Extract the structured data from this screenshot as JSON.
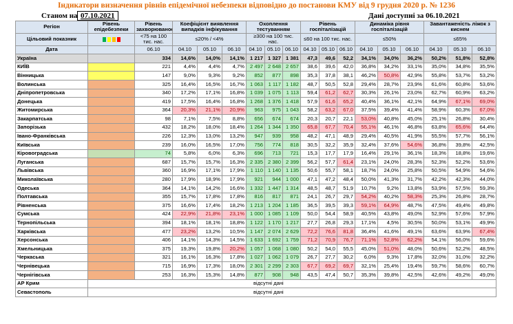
{
  "title": "Індикатори визначення рівнів епідемічної небезпеки відповідно до постанови КМУ від 9 грудня 2020 р. № 1236",
  "as_of_label": "Станом на",
  "as_of_date": "07.10.2021",
  "data_note": "Дані доступні за 06.10.2021",
  "table": {
    "headers": [
      "Регіон",
      "Рівень епідебезпеки",
      "Рівень захворюваності",
      "Коефіцієнт виявлення випадків інфікування",
      "Охоплення тестуванням",
      "Рівень госпіталізацій",
      "Динаміка рівня госпіталізацій",
      "Завантаженість ліжок з киснем"
    ],
    "target_label": "Цільовий показник",
    "targets": [
      "<75 на 100 тис. нас.",
      "≤20% / <4%",
      "≥300 на 100 тис. нас.",
      "≤60 на 100 тис. нас.",
      "≤50%",
      "≤65%"
    ],
    "date_label": "Дата",
    "dates": [
      "06.10",
      "04.10",
      "05.10",
      "06.10",
      "04.10",
      "05.10",
      "06.10",
      "04.10",
      "05.10",
      "06.10",
      "04.10",
      "05.10",
      "06.10",
      "04.10",
      "05.10",
      "06.10"
    ],
    "rows": [
      {
        "region": "Україна",
        "level": null,
        "cells": [
          "334",
          "14,6%",
          "14,0%",
          "14,1%",
          "1 217",
          "1 327",
          "1 381",
          "47,3",
          "49,6",
          "52,2",
          "34,1%",
          "34,0%",
          "36,2%",
          "50,2%",
          "51,8%",
          "52,8%"
        ],
        "red": [],
        "green": []
      },
      {
        "region": "КИЇВ",
        "level": "#ffff66",
        "cells": [
          "221",
          "4,4%",
          "4,4%",
          "4,7%",
          "2 497",
          "2 648",
          "2 657",
          "38,6",
          "39,6",
          "42,0",
          "36,8%",
          "34,2%",
          "33,1%",
          "35,0%",
          "34,8%",
          "35,5%"
        ],
        "red": [],
        "green": [
          4,
          5,
          6
        ]
      },
      {
        "region": "Вінницька",
        "level": "#ffff66",
        "cells": [
          "147",
          "9,0%",
          "9,3%",
          "9,2%",
          "852",
          "877",
          "898",
          "35,3",
          "37,8",
          "38,1",
          "46,2%",
          "50,8%",
          "42,9%",
          "55,8%",
          "53,7%",
          "53,2%"
        ],
        "red": [
          11
        ],
        "green": [
          4,
          5,
          6
        ]
      },
      {
        "region": "Волинська",
        "level": "#f4b183",
        "cells": [
          "325",
          "16,4%",
          "16,5%",
          "16,7%",
          "1 063",
          "1 117",
          "1 182",
          "48,7",
          "50,5",
          "52,8",
          "29,4%",
          "28,7%",
          "23,9%",
          "61,6%",
          "60,8%",
          "53,6%"
        ],
        "red": [],
        "green": [
          4,
          5,
          6
        ]
      },
      {
        "region": "Дніпропетровська",
        "level": "#f4b183",
        "cells": [
          "340",
          "17,2%",
          "17,1%",
          "16,8%",
          "1 039",
          "1 075",
          "1 113",
          "59,4",
          "61,2",
          "62,7",
          "30,3%",
          "26,1%",
          "23,0%",
          "62,7%",
          "60,9%",
          "63,2%"
        ],
        "red": [
          8,
          9
        ],
        "green": [
          4,
          5,
          6
        ]
      },
      {
        "region": "Донецька",
        "level": "#f4b183",
        "cells": [
          "419",
          "17,5%",
          "16,4%",
          "16,8%",
          "1 268",
          "1 376",
          "1 418",
          "57,9",
          "61,6",
          "65,2",
          "40,4%",
          "36,1%",
          "42,1%",
          "64,9%",
          "67,1%",
          "69,0%"
        ],
        "red": [
          8,
          9,
          14,
          15
        ],
        "green": [
          4,
          5,
          6
        ]
      },
      {
        "region": "Житомирська",
        "level": "#f4b183",
        "cells": [
          "364",
          "20,3%",
          "21,1%",
          "20,9%",
          "963",
          "975",
          "1 043",
          "58,2",
          "63,2",
          "67,0",
          "37,5%",
          "39,4%",
          "41,4%",
          "58,9%",
          "60,3%",
          "67,0%"
        ],
        "red": [
          1,
          2,
          3,
          8,
          9,
          15
        ],
        "green": [
          4,
          5,
          6
        ]
      },
      {
        "region": "Закарпатська",
        "level": "#f4b183",
        "cells": [
          "98",
          "7,1%",
          "7,5%",
          "8,8%",
          "656",
          "674",
          "674",
          "20,3",
          "20,7",
          "22,1",
          "53,0%",
          "40,8%",
          "45,0%",
          "25,1%",
          "26,8%",
          "30,4%"
        ],
        "red": [
          10
        ],
        "green": [
          4,
          5,
          6
        ]
      },
      {
        "region": "Запорізька",
        "level": "#f4b183",
        "cells": [
          "432",
          "18,2%",
          "18,0%",
          "18,4%",
          "1 264",
          "1 344",
          "1 350",
          "65,8",
          "67,7",
          "70,4",
          "55,1%",
          "46,1%",
          "46,8%",
          "63,8%",
          "65,6%",
          "64,4%"
        ],
        "red": [
          7,
          8,
          9,
          10,
          14
        ],
        "green": [
          4,
          5,
          6
        ]
      },
      {
        "region": "Івано-Франківська",
        "level": "#f4b183",
        "cells": [
          "226",
          "12,3%",
          "13,0%",
          "13,2%",
          "947",
          "939",
          "958",
          "48,2",
          "47,1",
          "48,9",
          "29,4%",
          "40,5%",
          "41,9%",
          "55,5%",
          "57,7%",
          "56,1%"
        ],
        "red": [],
        "green": [
          4,
          5,
          6
        ]
      },
      {
        "region": "Київська",
        "level": "#f4b183",
        "cells": [
          "239",
          "16,0%",
          "16,5%",
          "17,0%",
          "756",
          "774",
          "818",
          "30,5",
          "32,2",
          "35,9",
          "32,4%",
          "37,6%",
          "54,6%",
          "36,8%",
          "39,8%",
          "42,5%"
        ],
        "red": [
          12
        ],
        "green": [
          4,
          5,
          6
        ]
      },
      {
        "region": "Кіровоградська",
        "level": "#c6e0b4",
        "cells": [
          "74",
          "5,8%",
          "6,0%",
          "6,3%",
          "696",
          "713",
          "721",
          "15,3",
          "17,7",
          "17,9",
          "16,4%",
          "29,1%",
          "36,1%",
          "18,3%",
          "18,8%",
          "19,6%"
        ],
        "red": [],
        "green": [
          0,
          4,
          5,
          6
        ]
      },
      {
        "region": "Луганська",
        "level": "#f4b183",
        "cells": [
          "687",
          "15,7%",
          "15,7%",
          "16,3%",
          "2 335",
          "2 380",
          "2 399",
          "56,2",
          "57,7",
          "61,4",
          "23,1%",
          "24,0%",
          "28,3%",
          "52,3%",
          "52,2%",
          "53,6%"
        ],
        "red": [
          9
        ],
        "green": [
          4,
          5,
          6
        ]
      },
      {
        "region": "Львівська",
        "level": "#f4b183",
        "cells": [
          "360",
          "16,9%",
          "17,1%",
          "17,9%",
          "1 110",
          "1 140",
          "1 135",
          "50,6",
          "55,7",
          "58,1",
          "18,7%",
          "24,0%",
          "25,8%",
          "50,5%",
          "54,9%",
          "54,6%"
        ],
        "red": [],
        "green": [
          4,
          5,
          6
        ]
      },
      {
        "region": "Миколаївська",
        "level": "#f4b183",
        "cells": [
          "280",
          "17,9%",
          "18,9%",
          "17,9%",
          "921",
          "944",
          "1 000",
          "47,1",
          "47,2",
          "48,4",
          "50,0%",
          "41,3%",
          "31,7%",
          "42,2%",
          "42,3%",
          "44,0%"
        ],
        "red": [],
        "green": [
          4,
          5,
          6
        ]
      },
      {
        "region": "Одеська",
        "level": "#f4b183",
        "cells": [
          "364",
          "14,1%",
          "14,2%",
          "16,6%",
          "1 332",
          "1 447",
          "1 314",
          "48,5",
          "48,7",
          "51,9",
          "10,7%",
          "9,2%",
          "13,8%",
          "53,9%",
          "57,5%",
          "59,3%"
        ],
        "red": [],
        "green": [
          4,
          5,
          6
        ]
      },
      {
        "region": "Полтавська",
        "level": "#f4b183",
        "cells": [
          "355",
          "15,7%",
          "17,8%",
          "17,8%",
          "816",
          "817",
          "871",
          "24,1",
          "26,7",
          "29,7",
          "54,2%",
          "40,2%",
          "58,3%",
          "25,3%",
          "26,8%",
          "28,7%"
        ],
        "red": [
          10,
          12
        ],
        "green": [
          4,
          5,
          6
        ]
      },
      {
        "region": "Рівненська",
        "level": "#f4b183",
        "cells": [
          "375",
          "16,6%",
          "17,4%",
          "18,2%",
          "1 213",
          "1 204",
          "1 185",
          "36,5",
          "39,5",
          "39,3",
          "59,1%",
          "64,9%",
          "48,7%",
          "47,5%",
          "49,4%",
          "49,8%"
        ],
        "red": [
          10,
          11
        ],
        "green": [
          4,
          5,
          6
        ]
      },
      {
        "region": "Сумська",
        "level": "#f4b183",
        "cells": [
          "424",
          "22,9%",
          "21,8%",
          "23,1%",
          "1 000",
          "1 085",
          "1 109",
          "50,0",
          "54,4",
          "58,9",
          "40,5%",
          "43,8%",
          "49,0%",
          "52,9%",
          "57,6%",
          "57,9%"
        ],
        "red": [
          1,
          2,
          3
        ],
        "green": [
          4,
          5,
          6
        ]
      },
      {
        "region": "Тернопільська",
        "level": "#f4b183",
        "cells": [
          "394",
          "18,1%",
          "18,1%",
          "18,8%",
          "1 122",
          "1 170",
          "1 217",
          "27,7",
          "26,8",
          "29,3",
          "17,1%",
          "4,5%",
          "30,5%",
          "50,0%",
          "53,1%",
          "49,9%"
        ],
        "red": [],
        "green": [
          4,
          5,
          6
        ]
      },
      {
        "region": "Харківська",
        "level": "#f4b183",
        "cells": [
          "477",
          "23,2%",
          "13,2%",
          "10,5%",
          "1 147",
          "2 074",
          "2 629",
          "72,2",
          "76,6",
          "81,8",
          "36,4%",
          "41,6%",
          "49,1%",
          "63,6%",
          "63,9%",
          "67,4%"
        ],
        "red": [
          1,
          7,
          8,
          9,
          15
        ],
        "green": [
          4,
          5,
          6
        ]
      },
      {
        "region": "Херсонська",
        "level": "#f4b183",
        "cells": [
          "406",
          "14,1%",
          "14,3%",
          "14,5%",
          "1 633",
          "1 692",
          "1 759",
          "71,2",
          "70,9",
          "76,7",
          "71,1%",
          "52,8%",
          "62,2%",
          "54,1%",
          "56,0%",
          "59,6%"
        ],
        "red": [
          7,
          8,
          9,
          10,
          11,
          12
        ],
        "green": [
          4,
          5,
          6
        ]
      },
      {
        "region": "Хмельницька",
        "level": "#f4b183",
        "cells": [
          "375",
          "19,3%",
          "19,8%",
          "20,2%",
          "1 057",
          "1 068",
          "1 080",
          "50,2",
          "54,0",
          "55,5",
          "45,0%",
          "51,0%",
          "48,0%",
          "50,6%",
          "52,2%",
          "48,5%"
        ],
        "red": [
          3,
          11
        ],
        "green": [
          4,
          5,
          6
        ]
      },
      {
        "region": "Черкаська",
        "level": "#f4b183",
        "cells": [
          "321",
          "16,1%",
          "16,3%",
          "17,8%",
          "1 027",
          "1 062",
          "1 079",
          "26,7",
          "27,7",
          "30,2",
          "6,0%",
          "9,3%",
          "17,8%",
          "32,0%",
          "31,0%",
          "32,2%"
        ],
        "red": [],
        "green": [
          4,
          5,
          6
        ]
      },
      {
        "region": "Чернівецька",
        "level": "#f4b183",
        "cells": [
          "715",
          "16,9%",
          "17,3%",
          "18,0%",
          "2 301",
          "2 299",
          "2 303",
          "67,7",
          "69,2",
          "69,7",
          "32,1%",
          "25,4%",
          "19,4%",
          "59,7%",
          "58,6%",
          "60,7%"
        ],
        "red": [
          7,
          8,
          9
        ],
        "green": [
          4,
          5,
          6
        ]
      },
      {
        "region": "Чернігівська",
        "level": "#f4b183",
        "cells": [
          "253",
          "16,3%",
          "15,3%",
          "14,8%",
          "877",
          "908",
          "948",
          "43,5",
          "47,4",
          "50,7",
          "35,3%",
          "39,8%",
          "42,5%",
          "42,6%",
          "49,2%",
          "49,0%"
        ],
        "red": [],
        "green": [
          4,
          5,
          6
        ]
      }
    ],
    "no_data_rows": [
      {
        "region": "АР Крим",
        "text": "відсутні дані"
      },
      {
        "region": "Севастополь",
        "text": "відсутні дані"
      }
    ]
  }
}
